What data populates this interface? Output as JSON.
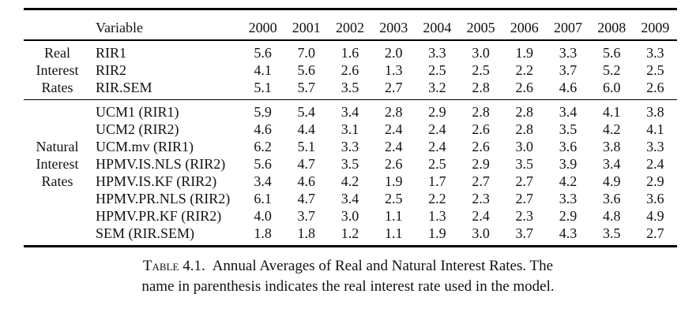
{
  "page": {
    "background_color": "#ffffff",
    "text_color": "#121212",
    "rule_color": "#000000"
  },
  "table": {
    "header": {
      "variable_label": "Variable",
      "years": [
        "2000",
        "2001",
        "2002",
        "2003",
        "2004",
        "2005",
        "2006",
        "2007",
        "2008",
        "2009"
      ]
    },
    "sections": [
      {
        "group_lines": [
          "Real",
          "Interest",
          "Rates"
        ],
        "rows": [
          {
            "variable": "RIR1",
            "values": [
              "5.6",
              "7.0",
              "1.6",
              "2.0",
              "3.3",
              "3.0",
              "1.9",
              "3.3",
              "5.6",
              "3.3"
            ]
          },
          {
            "variable": "RIR2",
            "values": [
              "4.1",
              "5.6",
              "2.6",
              "1.3",
              "2.5",
              "2.5",
              "2.2",
              "3.7",
              "5.2",
              "2.5"
            ]
          },
          {
            "variable": "RIR.SEM",
            "values": [
              "5.1",
              "5.7",
              "3.5",
              "2.7",
              "3.2",
              "2.8",
              "2.6",
              "4.6",
              "6.0",
              "2.6"
            ]
          }
        ]
      },
      {
        "group_lines": [
          "Natural",
          "Interest",
          "Rates"
        ],
        "rows": [
          {
            "variable": "UCM1 (RIR1)",
            "values": [
              "5.9",
              "5.4",
              "3.4",
              "2.8",
              "2.9",
              "2.8",
              "2.8",
              "3.4",
              "4.1",
              "3.8"
            ]
          },
          {
            "variable": "UCM2 (RIR2)",
            "values": [
              "4.6",
              "4.4",
              "3.1",
              "2.4",
              "2.4",
              "2.6",
              "2.8",
              "3.5",
              "4.2",
              "4.1"
            ]
          },
          {
            "variable": "UCM.mv (RIR1)",
            "values": [
              "6.2",
              "5.1",
              "3.3",
              "2.4",
              "2.4",
              "2.6",
              "3.0",
              "3.6",
              "3.8",
              "3.3"
            ]
          },
          {
            "variable": "HPMV.IS.NLS (RIR2)",
            "values": [
              "5.6",
              "4.7",
              "3.5",
              "2.6",
              "2.5",
              "2.9",
              "3.5",
              "3.9",
              "3.4",
              "2.4"
            ]
          },
          {
            "variable": "HPMV.IS.KF (RIR2)",
            "values": [
              "3.4",
              "4.6",
              "4.2",
              "1.9",
              "1.7",
              "2.7",
              "2.7",
              "4.2",
              "4.9",
              "2.9"
            ]
          },
          {
            "variable": "HPMV.PR.NLS (RIR2)",
            "values": [
              "6.1",
              "4.7",
              "3.4",
              "2.5",
              "2.2",
              "2.3",
              "2.7",
              "3.3",
              "3.6",
              "3.6"
            ]
          },
          {
            "variable": "HPMV.PR.KF (RIR2)",
            "values": [
              "4.0",
              "3.7",
              "3.0",
              "1.1",
              "1.3",
              "2.4",
              "2.3",
              "2.9",
              "4.8",
              "4.9"
            ]
          },
          {
            "variable": "SEM (RIR.SEM)",
            "values": [
              "1.8",
              "1.8",
              "1.2",
              "1.1",
              "1.9",
              "3.0",
              "3.7",
              "4.3",
              "3.5",
              "2.7"
            ]
          }
        ]
      }
    ],
    "caption": {
      "label": "Table 4.1.",
      "line1_rest": "Annual Averages of Real and Natural Interest Rates. The",
      "line2": "name in parenthesis indicates the real interest rate used in the model."
    }
  }
}
